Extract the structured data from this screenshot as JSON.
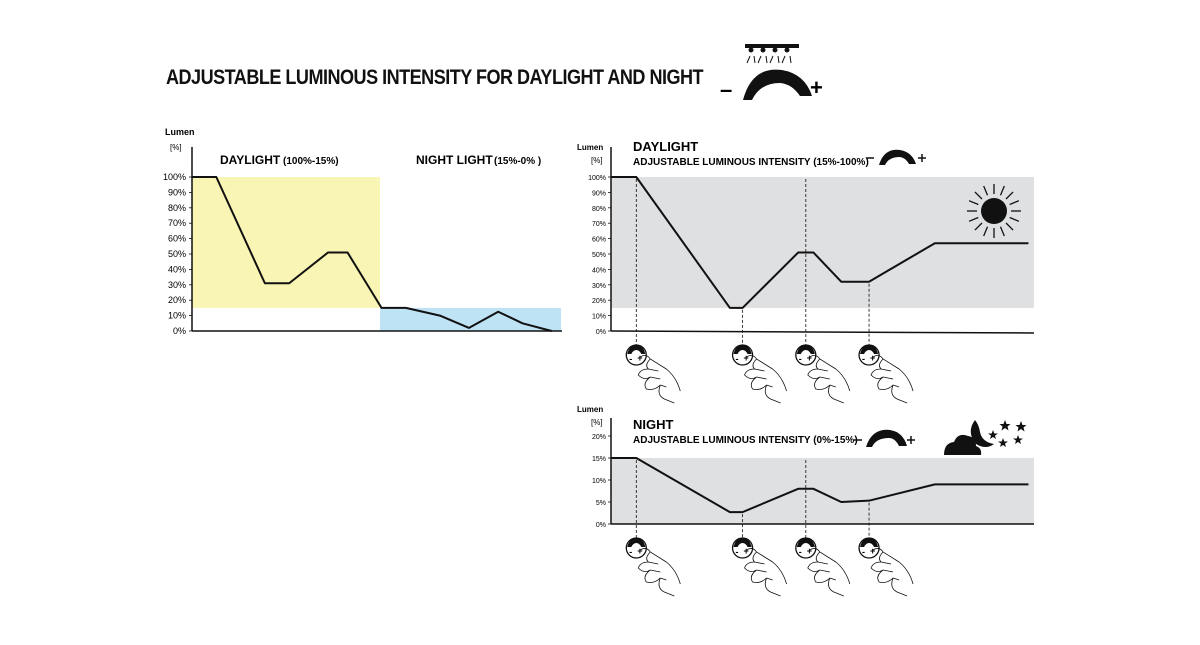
{
  "title": "ADJUSTABLE LUMINOUS INTENSITY FOR DAYLIGHT AND NIGHT",
  "dimmer_icon": {
    "minus": "–",
    "plus": "+"
  },
  "colors": {
    "day_fill": "#f9f5b4",
    "night_fill": "#bde3f4",
    "gray_fill": "#dfe0e1",
    "line": "#111111"
  },
  "left_chart": {
    "unit_label": "Lumen",
    "unit_sub": "[%]",
    "yticks": [
      "100%",
      "90%",
      "80%",
      "70%",
      "60%",
      "50%",
      "40%",
      "30%",
      "20%",
      "10%",
      "0%"
    ],
    "day_label": "DAYLIGHT",
    "day_range": "(100%-15%)",
    "night_label": "NIGHT LIGHT",
    "night_range": "(15%-0% )"
  },
  "day_chart": {
    "unit_label": "Lumen",
    "unit_sub": "[%]",
    "heading": "DAYLIGHT",
    "subheading": "ADJUSTABLE LUMINOUS INTENSITY (15%-100%)",
    "yticks": [
      "100%",
      "90%",
      "80%",
      "70%",
      "60%",
      "50%",
      "40%",
      "30%",
      "20%",
      "10%",
      "0%"
    ],
    "icon": "sun-icon"
  },
  "night_chart": {
    "unit_label": "Lumen",
    "unit_sub": "[%]",
    "heading": "NIGHT",
    "subheading": "ADJUSTABLE LUMINOUS INTENSITY (0%-15%)",
    "yticks": [
      "20%",
      "15%",
      "10%",
      "5%",
      "0%"
    ],
    "icon": "moon-cloud-stars-icon"
  },
  "chart_data": [
    {
      "type": "line",
      "name_ref": "left_chart",
      "ylabel": "Lumen [%]",
      "ylim": [
        0,
        100
      ],
      "x": [
        0,
        1,
        3,
        4,
        5.6,
        6.4,
        7.8,
        8.8,
        10.2,
        11.4,
        12.6,
        13.6,
        14.8
      ],
      "y": [
        100,
        100,
        31,
        31,
        51,
        51,
        15,
        15,
        10,
        2,
        12.5,
        5,
        0
      ],
      "day_band": [
        100,
        15
      ],
      "night_band": [
        15,
        0
      ]
    },
    {
      "type": "line",
      "name_ref": "day_chart",
      "ylabel": "Lumen [%]",
      "ylim": [
        0,
        100
      ],
      "x": [
        0,
        1,
        4.7,
        5.2,
        7.4,
        8.0,
        9.1,
        10.2,
        12.8,
        16.5
      ],
      "y": [
        100,
        100,
        15,
        15,
        51,
        51,
        32,
        32,
        57,
        57
      ],
      "band": [
        100,
        15
      ],
      "adjust_points_x": [
        1,
        5.2,
        7.7,
        10.2
      ]
    },
    {
      "type": "line",
      "name_ref": "night_chart",
      "ylabel": "Lumen [%]",
      "ylim": [
        0,
        20
      ],
      "x": [
        0,
        1,
        4.7,
        5.2,
        7.4,
        8.0,
        9.1,
        10.2,
        12.8,
        16.5
      ],
      "y": [
        15,
        15,
        2.7,
        2.7,
        8,
        8,
        5,
        5.3,
        9,
        9
      ],
      "band": [
        15,
        0
      ],
      "adjust_points_x": [
        1,
        5.2,
        7.7,
        10.2
      ]
    }
  ]
}
